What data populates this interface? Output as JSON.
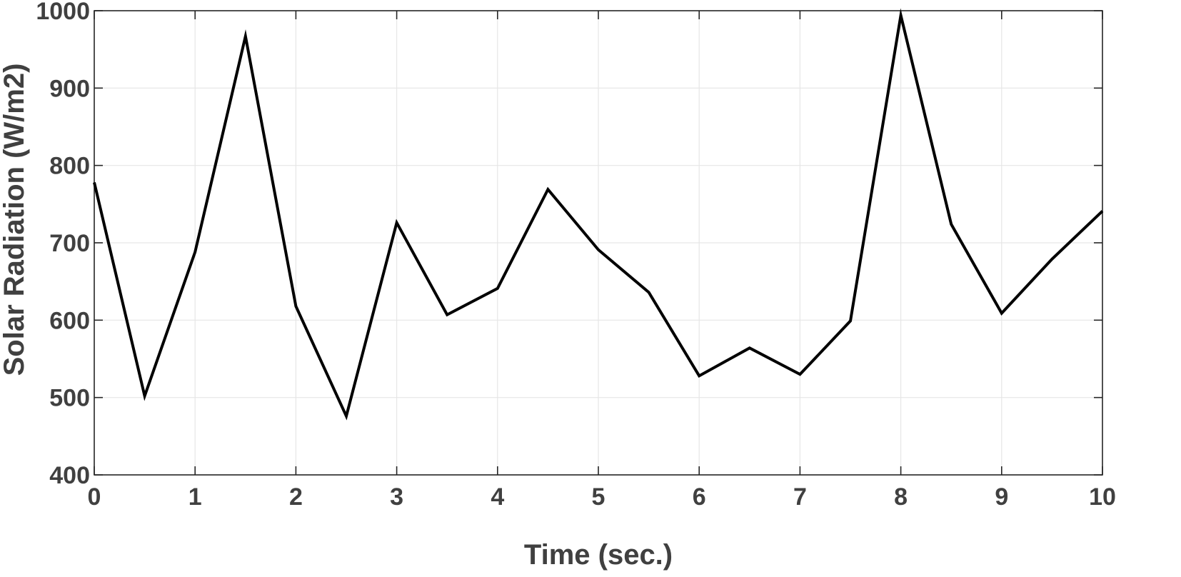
{
  "chart_data": {
    "type": "line",
    "title": "",
    "xlabel": "Time (sec.)",
    "ylabel": "Solar Radiation (W/m2)",
    "xlim": [
      0,
      10
    ],
    "ylim": [
      400,
      1000
    ],
    "x_ticks": [
      0,
      1,
      2,
      3,
      4,
      5,
      6,
      7,
      8,
      9,
      10
    ],
    "y_ticks": [
      400,
      500,
      600,
      700,
      800,
      900,
      1000
    ],
    "grid": true,
    "legend": "none",
    "line_color": "#000000",
    "series": [
      {
        "x": [
          0,
          0.5,
          1,
          1.5,
          2,
          2.5,
          3,
          3.5,
          4,
          4.5,
          5,
          5.5,
          6,
          6.5,
          7,
          7.5,
          8,
          8.5,
          9,
          9.5,
          10
        ],
        "values": [
          778,
          502,
          688,
          967,
          618,
          476,
          726,
          607,
          641,
          769,
          691,
          636,
          528,
          564,
          530,
          599,
          994,
          724,
          609,
          679,
          741
        ]
      }
    ]
  }
}
